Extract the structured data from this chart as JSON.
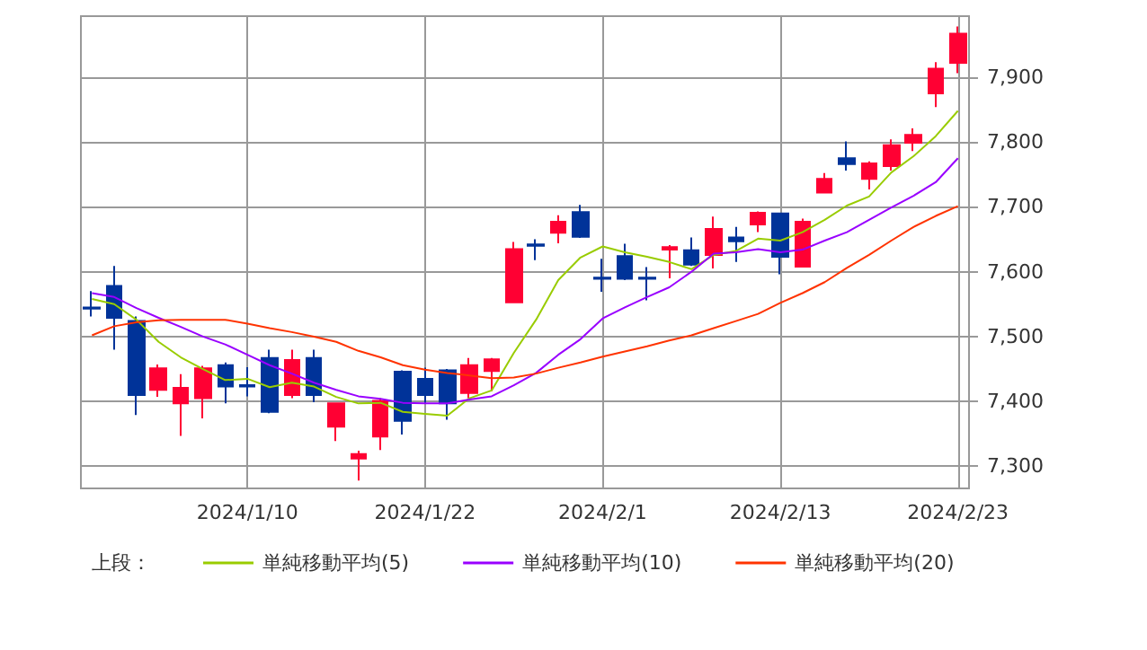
{
  "chart_data": {
    "type": "candlestick",
    "legend_title": "上段：",
    "categories": [
      null,
      null,
      null,
      null,
      null,
      null,
      null,
      "2024/1/10",
      null,
      null,
      null,
      null,
      null,
      null,
      null,
      "2024/1/22",
      null,
      null,
      null,
      null,
      null,
      null,
      null,
      "2024/2/1",
      null,
      null,
      null,
      null,
      null,
      null,
      null,
      "2024/2/13",
      null,
      null,
      null,
      null,
      null,
      null,
      null,
      "2024/2/23"
    ],
    "ohlc": [
      [
        7545,
        7570,
        7531,
        7543
      ],
      [
        7578,
        7609,
        7480,
        7529
      ],
      [
        7524,
        7531,
        7379,
        7410
      ],
      [
        7418,
        7457,
        7407,
        7451
      ],
      [
        7397,
        7442,
        7347,
        7421
      ],
      [
        7405,
        7455,
        7374,
        7451
      ],
      [
        7456,
        7460,
        7397,
        7423
      ],
      [
        7425,
        7453,
        7408,
        7423
      ],
      [
        7467,
        7480,
        7382,
        7384
      ],
      [
        7410,
        7480,
        7405,
        7464
      ],
      [
        7467,
        7480,
        7399,
        7410
      ],
      [
        7361,
        7398,
        7339,
        7397
      ],
      [
        7312,
        7324,
        7278,
        7319
      ],
      [
        7346,
        7405,
        7325,
        7401
      ],
      [
        7446,
        7448,
        7349,
        7370
      ],
      [
        7435,
        7452,
        7397,
        7410
      ],
      [
        7448,
        7450,
        7372,
        7397
      ],
      [
        7413,
        7467,
        7405,
        7456
      ],
      [
        7447,
        7467,
        7416,
        7465
      ],
      [
        7553,
        7646,
        7552,
        7635
      ],
      [
        7642,
        7650,
        7618,
        7640
      ],
      [
        7660,
        7687,
        7644,
        7677
      ],
      [
        7692,
        7703,
        7652,
        7654
      ],
      [
        7591,
        7620,
        7569,
        7589
      ],
      [
        7624,
        7643,
        7587,
        7589
      ],
      [
        7591,
        7607,
        7556,
        7589
      ],
      [
        7634,
        7641,
        7590,
        7638
      ],
      [
        7633,
        7653,
        7609,
        7611
      ],
      [
        7626,
        7685,
        7605,
        7666
      ],
      [
        7653,
        7669,
        7615,
        7647
      ],
      [
        7673,
        7693,
        7661,
        7691
      ],
      [
        7690,
        7691,
        7596,
        7623
      ],
      [
        7608,
        7682,
        7607,
        7677
      ],
      [
        7722,
        7752,
        7721,
        7743
      ],
      [
        7775,
        7801,
        7756,
        7766
      ],
      [
        7743,
        7770,
        7727,
        7767
      ],
      [
        7763,
        7804,
        7756,
        7795
      ],
      [
        7799,
        7821,
        7786,
        7811
      ],
      [
        7875,
        7923,
        7854,
        7913
      ],
      [
        7922,
        7978,
        7906,
        7967
      ]
    ],
    "colors": [
      "#003399",
      "#003399",
      "#003399",
      "#ff0033",
      "#ff0033",
      "#ff0033",
      "#003399",
      "#003399",
      "#003399",
      "#ff0033",
      "#003399",
      "#ff0033",
      "#ff0033",
      "#ff0033",
      "#003399",
      "#003399",
      "#003399",
      "#ff0033",
      "#ff0033",
      "#ff0033",
      "#003399",
      "#ff0033",
      "#003399",
      "#003399",
      "#003399",
      "#003399",
      "#ff0033",
      "#003399",
      "#ff0033",
      "#003399",
      "#ff0033",
      "#003399",
      "#ff0033",
      "#ff0033",
      "#003399",
      "#ff0033",
      "#ff0033",
      "#ff0033",
      "#ff0033",
      "#ff0033"
    ],
    "series": [
      {
        "type": "line",
        "name": "単純移動平均(5)",
        "color": "#99cc00",
        "values": [
          7558,
          7550,
          7526,
          7492,
          7468,
          7450,
          7433,
          7435,
          7422,
          7429,
          7423,
          7407,
          7397,
          7398,
          7384,
          7381,
          7378,
          7405,
          7417,
          7475,
          7526,
          7587,
          7622,
          7639,
          7630,
          7623,
          7615,
          7604,
          7626,
          7632,
          7651,
          7648,
          7661,
          7680,
          7702,
          7716,
          7753,
          7778,
          7809,
          7848
        ]
      },
      {
        "type": "line",
        "name": "単純移動平均(10)",
        "color": "#9900ff",
        "values": [
          7567,
          7561,
          7544,
          7529,
          7515,
          7500,
          7488,
          7472,
          7456,
          7443,
          7429,
          7418,
          7408,
          7404,
          7398,
          7397,
          7397,
          7403,
          7408,
          7425,
          7444,
          7472,
          7496,
          7528,
          7545,
          7561,
          7576,
          7600,
          7628,
          7630,
          7635,
          7630,
          7634,
          7648,
          7661,
          7680,
          7699,
          7717,
          7738,
          7775
        ]
      },
      {
        "type": "line",
        "name": "単純移動平均(20)",
        "color": "#ff3300",
        "values": [
          7502,
          7516,
          7522,
          7525,
          7526,
          7526,
          7526,
          7520,
          7513,
          7507,
          7500,
          7492,
          7478,
          7468,
          7456,
          7449,
          7444,
          7440,
          7436,
          7437,
          7443,
          7452,
          7460,
          7469,
          7477,
          7485,
          7494,
          7502,
          7513,
          7524,
          7535,
          7552,
          7567,
          7584,
          7606,
          7626,
          7648,
          7669,
          7686,
          7701
        ]
      }
    ],
    "ylim": [
      7266,
      7994
    ],
    "yticks": [
      {
        "value": 7300,
        "label": "7,300"
      },
      {
        "value": 7400,
        "label": "7,400"
      },
      {
        "value": 7500,
        "label": "7,500"
      },
      {
        "value": 7600,
        "label": "7,600"
      },
      {
        "value": 7700,
        "label": "7,700"
      },
      {
        "value": 7800,
        "label": "7,800"
      },
      {
        "value": 7900,
        "label": "7,900"
      }
    ],
    "grid": true,
    "legend": "bottom",
    "marker": "none"
  }
}
